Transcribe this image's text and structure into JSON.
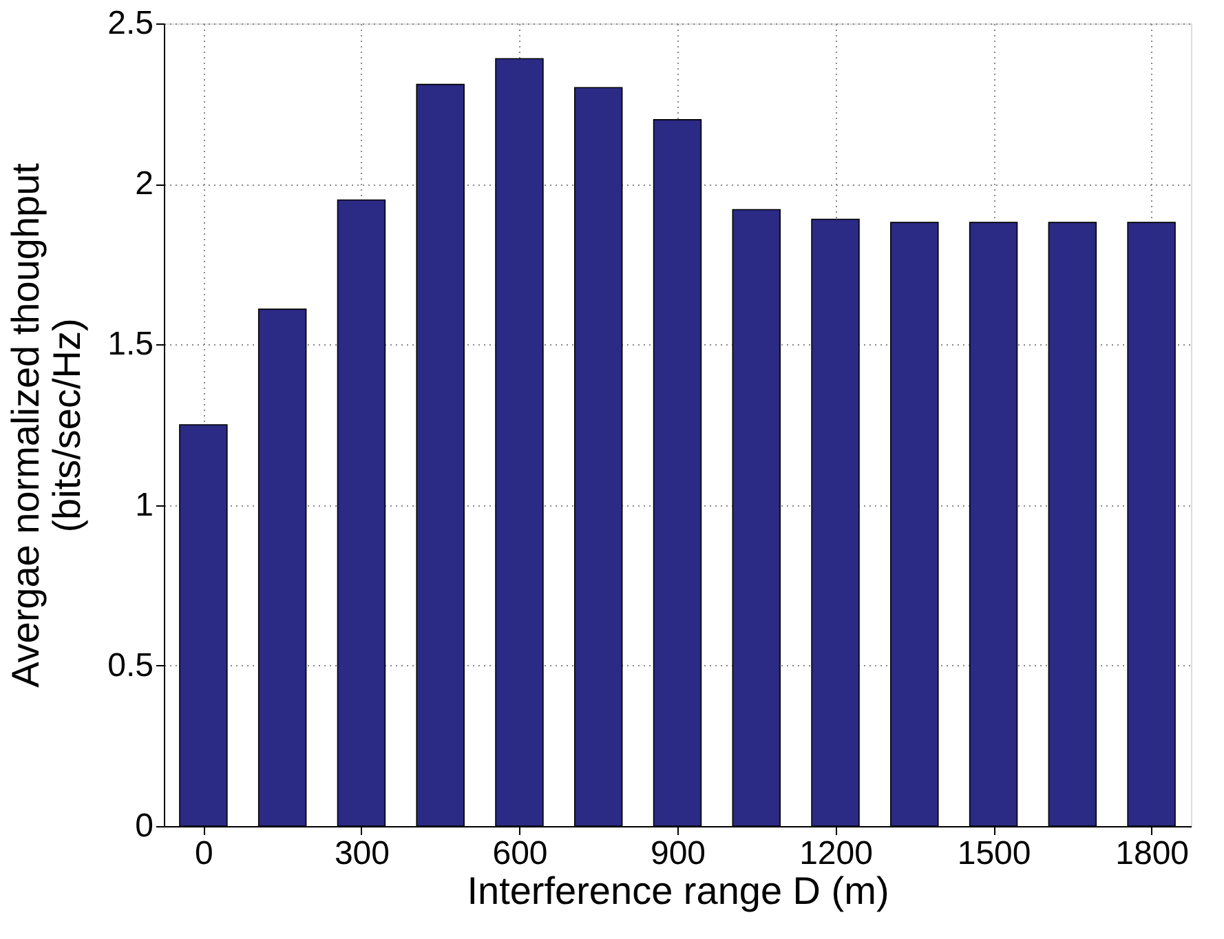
{
  "chart_data": {
    "type": "bar",
    "xlabel": "Interference range D (m)",
    "ylabel": "Avergae normalized thoughput\n(bits/sec/Hz)",
    "x": [
      0,
      150,
      300,
      450,
      600,
      750,
      900,
      1050,
      1200,
      1350,
      1500,
      1650,
      1800
    ],
    "values": [
      1.25,
      1.61,
      1.95,
      2.31,
      2.39,
      2.3,
      2.2,
      1.92,
      1.89,
      1.88,
      1.88,
      1.88,
      1.88
    ],
    "color": "#2b2a85",
    "xlim": [
      -75,
      1875
    ],
    "xticks": [
      0,
      300,
      600,
      900,
      1200,
      1500,
      1800
    ],
    "ylim": [
      0,
      2.5
    ],
    "yticks": [
      0,
      0.5,
      1,
      1.5,
      2,
      2.5
    ],
    "grid": true
  }
}
